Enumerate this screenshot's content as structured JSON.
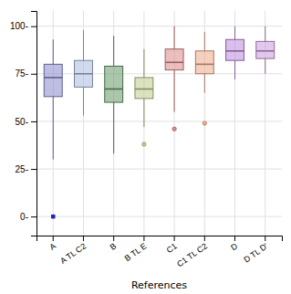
{
  "chart_data": {
    "type": "box",
    "xlabel": "References",
    "categories": [
      "A",
      "A TL C2",
      "B",
      "B TL E",
      "C1",
      "C1 TL C2",
      "D",
      "D TL D'"
    ],
    "boxes": [
      {
        "q1": 63,
        "median": 73,
        "q3": 80,
        "whisker_low": 30,
        "whisker_high": 93,
        "outliers": []
      },
      {
        "q1": 68,
        "median": 75,
        "q3": 82,
        "whisker_low": 53,
        "whisker_high": 98,
        "outliers": []
      },
      {
        "q1": 60,
        "median": 67,
        "q3": 79,
        "whisker_low": 33,
        "whisker_high": 95,
        "outliers": []
      },
      {
        "q1": 62,
        "median": 67,
        "q3": 73,
        "whisker_low": 47,
        "whisker_high": 88,
        "outliers": [
          38
        ]
      },
      {
        "q1": 77,
        "median": 81,
        "q3": 88,
        "whisker_low": 55,
        "whisker_high": 100,
        "outliers": [
          46
        ]
      },
      {
        "q1": 75,
        "median": 80,
        "q3": 87,
        "whisker_low": 65,
        "whisker_high": 97,
        "outliers": [
          49
        ]
      },
      {
        "q1": 82,
        "median": 87,
        "q3": 93,
        "whisker_low": 72,
        "whisker_high": 100,
        "outliers": []
      },
      {
        "q1": 83,
        "median": 87,
        "q3": 92,
        "whisker_low": 75,
        "whisker_high": 100,
        "outliers": []
      }
    ],
    "colors": [
      "#8888cc",
      "#aabbdd",
      "#669966",
      "#bbcc88",
      "#dd8888",
      "#eeaa88",
      "#bb88dd",
      "#cc99dd"
    ],
    "points": [
      {
        "x": "A",
        "y": 0,
        "color": "#2222bb",
        "marker": "square"
      }
    ],
    "ylim": [
      -10,
      108
    ],
    "yticks": [
      {
        "value": 0,
        "label": "0-"
      },
      {
        "value": 25,
        "label": "25-"
      },
      {
        "value": 50,
        "label": "50-"
      },
      {
        "value": 75,
        "label": "75-"
      },
      {
        "value": 100,
        "label": "100-"
      }
    ],
    "grid": true
  }
}
